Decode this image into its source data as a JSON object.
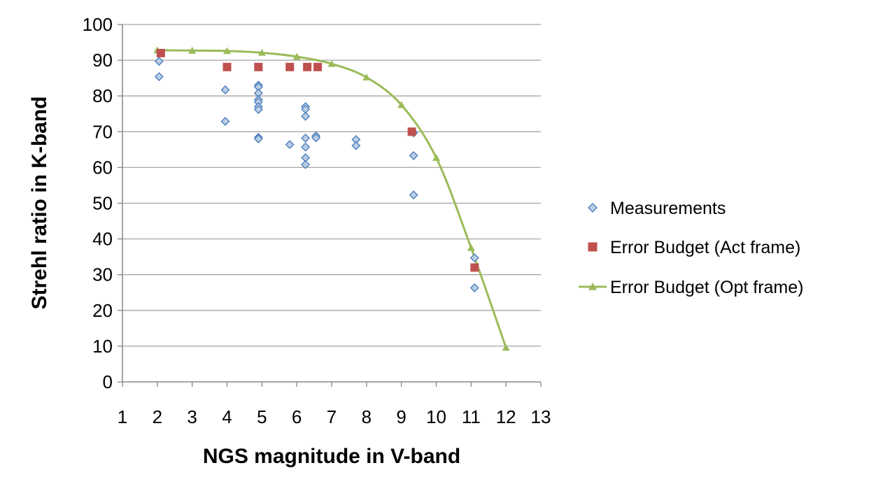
{
  "chart_data": {
    "type": "scatter",
    "title": "",
    "xlabel": "NGS magnitude in V-band",
    "ylabel": "Strehl ratio in K-band",
    "xlim": [
      1,
      13
    ],
    "ylim": [
      0,
      100
    ],
    "x_ticks": [
      "1",
      "2",
      "3",
      "4",
      "5",
      "6",
      "7",
      "8",
      "9",
      "10",
      "11",
      "12",
      "13"
    ],
    "y_ticks": [
      "0",
      "10",
      "20",
      "30",
      "40",
      "50",
      "60",
      "70",
      "80",
      "90",
      "100"
    ],
    "grid": "horizontal",
    "legend_position": "right",
    "colors": {
      "measurements": "#4f81bd",
      "measurements_fill": "#b9cde5",
      "act_frame": "#c0504d",
      "opt_frame": "#9bbb59",
      "gridline": "#a6a6a6",
      "axis": "#868686"
    },
    "series": [
      {
        "name": "Measurements",
        "marker": "diamond",
        "points": [
          [
            2.05,
            89.7
          ],
          [
            2.05,
            85.4
          ],
          [
            3.95,
            81.7
          ],
          [
            3.95,
            72.9
          ],
          [
            4.9,
            83.0
          ],
          [
            4.9,
            82.5
          ],
          [
            4.9,
            80.8
          ],
          [
            4.9,
            79.0
          ],
          [
            4.9,
            78.3
          ],
          [
            4.9,
            77.0
          ],
          [
            4.9,
            76.2
          ],
          [
            4.9,
            68.4
          ],
          [
            4.9,
            68.0
          ],
          [
            5.8,
            66.4
          ],
          [
            6.25,
            77.0
          ],
          [
            6.25,
            76.3
          ],
          [
            6.25,
            74.3
          ],
          [
            6.25,
            68.2
          ],
          [
            6.25,
            65.7
          ],
          [
            6.25,
            62.7
          ],
          [
            6.25,
            60.8
          ],
          [
            6.55,
            68.8
          ],
          [
            6.55,
            68.3
          ],
          [
            7.7,
            67.8
          ],
          [
            7.7,
            66.1
          ],
          [
            9.35,
            69.7
          ],
          [
            9.35,
            63.3
          ],
          [
            9.35,
            52.3
          ],
          [
            11.1,
            34.7
          ],
          [
            11.1,
            26.3
          ]
        ]
      },
      {
        "name": "Error Budget (Act frame)",
        "marker": "square",
        "points": [
          [
            2.1,
            92.0
          ],
          [
            4.0,
            88.1
          ],
          [
            4.9,
            88.1
          ],
          [
            5.8,
            88.1
          ],
          [
            6.3,
            88.1
          ],
          [
            6.6,
            88.1
          ],
          [
            9.3,
            70.0
          ],
          [
            11.1,
            32.0
          ]
        ]
      },
      {
        "name": "Error Budget (Opt frame)",
        "marker": "triangle",
        "line": true,
        "points": [
          [
            2,
            92.8
          ],
          [
            3,
            92.7
          ],
          [
            4,
            92.6
          ],
          [
            5,
            92.1
          ],
          [
            6,
            91.0
          ],
          [
            7,
            89.0
          ],
          [
            8,
            85.2
          ],
          [
            9,
            77.5
          ],
          [
            10,
            62.7
          ],
          [
            11,
            37.5
          ],
          [
            12,
            9.6
          ]
        ]
      }
    ]
  }
}
